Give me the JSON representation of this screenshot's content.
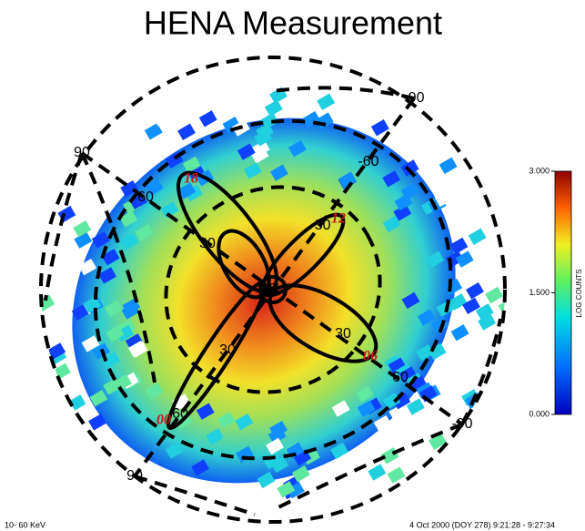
{
  "title": "HENA Measurement",
  "colorbar": {
    "label": "LOG COUNTS",
    "ticks": [
      {
        "value": 0,
        "label": "0.000"
      },
      {
        "value": 1.5,
        "label": "1.500"
      },
      {
        "value": 3,
        "label": "3.000"
      }
    ]
  },
  "grid_labels": [
    "-90",
    "-60",
    "-30",
    "0",
    "30",
    "60",
    "-90",
    "90",
    "60",
    "30",
    "30",
    "60",
    "90"
  ],
  "local_time_labels": [
    "18",
    "12",
    "06",
    "00"
  ],
  "energy": "10- 60 KeV",
  "time": "4 Oct 2000  (DOY  278) 9:21:28 - 9:27:34"
}
